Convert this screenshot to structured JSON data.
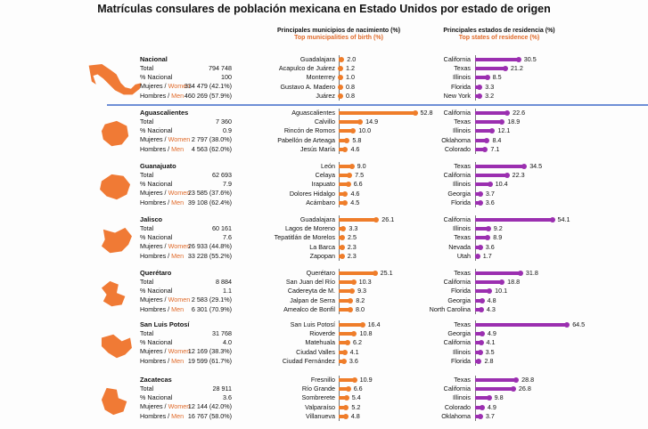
{
  "title": "Matrículas consulares de población mexicana en Estado Unidos por estado de origen",
  "headers": {
    "municipalities_es": "Principales municipios de nacimiento (%)",
    "municipalities_en": "Top municipalities of birth (%)",
    "states_es": "Principales estados de residencia (%)",
    "states_en": "Top states of residence (%)"
  },
  "labels": {
    "total": "Total",
    "pct": "% Nacional",
    "women_es": "Mujeres / ",
    "women_en": "Women",
    "men_es": "Hombres / ",
    "men_en": "Men"
  },
  "colors": {
    "municipality_bar": "#ef7d2a",
    "state_bar": "#9b2fb0",
    "map": "#f07a35",
    "separator": "#6e8fd6"
  },
  "chart_data": {
    "type": "bar",
    "orientation": "horizontal",
    "panels": [
      "Principales municipios de nacimiento (%)",
      "Principales estados de residencia (%)"
    ],
    "blocks": [
      {
        "name": "Nacional",
        "total": "794 748",
        "pct": "100",
        "women": "334 479 (42.1%)",
        "men": "460 269 (57.9%)",
        "municipalities": [
          {
            "name": "Guadalajara",
            "value": 2.0,
            "label": "2.0"
          },
          {
            "name": "Acapulco de Juárez",
            "value": 1.2,
            "label": "1.2"
          },
          {
            "name": "Monterrey",
            "value": 1.0,
            "label": "1.0"
          },
          {
            "name": "Gustavo A. Madero",
            "value": 0.8,
            "label": "0.8"
          },
          {
            "name": "Juárez",
            "value": 0.8,
            "label": "0.8"
          }
        ],
        "states": [
          {
            "name": "California",
            "value": 30.5,
            "label": "30.5"
          },
          {
            "name": "Texas",
            "value": 21.2,
            "label": "21.2"
          },
          {
            "name": "Illinois",
            "value": 8.5,
            "label": "8.5"
          },
          {
            "name": "Florida",
            "value": 3.3,
            "label": "3.3"
          },
          {
            "name": "New York",
            "value": 3.2,
            "label": "3.2"
          }
        ]
      },
      {
        "name": "Aguascalientes",
        "total": "7 360",
        "pct": "0.9",
        "women": "2 797 (38.0%)",
        "men": "4 563 (62.0%)",
        "municipalities": [
          {
            "name": "Aguascalientes",
            "value": 52.8,
            "label": "52.8"
          },
          {
            "name": "Calvillo",
            "value": 14.9,
            "label": "14.9"
          },
          {
            "name": "Rincón de Romos",
            "value": 10.0,
            "label": "10.0"
          },
          {
            "name": "Pabellón de Arteaga",
            "value": 5.8,
            "label": "5.8"
          },
          {
            "name": "Jesús María",
            "value": 4.6,
            "label": "4.6"
          }
        ],
        "states": [
          {
            "name": "California",
            "value": 22.6,
            "label": "22.6"
          },
          {
            "name": "Texas",
            "value": 18.9,
            "label": "18.9"
          },
          {
            "name": "Illinois",
            "value": 12.1,
            "label": "12.1"
          },
          {
            "name": "Oklahoma",
            "value": 8.4,
            "label": "8.4"
          },
          {
            "name": "Colorado",
            "value": 7.1,
            "label": "7.1"
          }
        ]
      },
      {
        "name": "Guanajuato",
        "total": "62 693",
        "pct": "7.9",
        "women": "23 585 (37.6%)",
        "men": "39 108 (62.4%)",
        "municipalities": [
          {
            "name": "León",
            "value": 9.0,
            "label": "9.0"
          },
          {
            "name": "Celaya",
            "value": 7.5,
            "label": "7.5"
          },
          {
            "name": "Irapuato",
            "value": 6.6,
            "label": "6.6"
          },
          {
            "name": "Dolores Hidalgo",
            "value": 4.6,
            "label": "4.6"
          },
          {
            "name": "Acámbaro",
            "value": 4.5,
            "label": "4.5"
          }
        ],
        "states": [
          {
            "name": "Texas",
            "value": 34.5,
            "label": "34.5"
          },
          {
            "name": "California",
            "value": 22.3,
            "label": "22.3"
          },
          {
            "name": "Illinois",
            "value": 10.4,
            "label": "10.4"
          },
          {
            "name": "Georgia",
            "value": 3.7,
            "label": "3.7"
          },
          {
            "name": "Florida",
            "value": 3.6,
            "label": "3.6"
          }
        ]
      },
      {
        "name": "Jalisco",
        "total": "60 161",
        "pct": "7.6",
        "women": "26 933 (44.8%)",
        "men": "33 228 (55.2%)",
        "municipalities": [
          {
            "name": "Guadalajara",
            "value": 26.1,
            "label": "26.1"
          },
          {
            "name": "Lagos de Moreno",
            "value": 3.3,
            "label": "3.3"
          },
          {
            "name": "Tepatitlán de Morelos",
            "value": 2.5,
            "label": "2.5"
          },
          {
            "name": "La Barca",
            "value": 2.3,
            "label": "2.3"
          },
          {
            "name": "Zapopan",
            "value": 2.3,
            "label": "2.3"
          }
        ],
        "states": [
          {
            "name": "California",
            "value": 54.1,
            "label": "54.1"
          },
          {
            "name": "Illinois",
            "value": 9.2,
            "label": "9.2"
          },
          {
            "name": "Texas",
            "value": 8.9,
            "label": "8.9"
          },
          {
            "name": "Nevada",
            "value": 3.6,
            "label": "3.6"
          },
          {
            "name": "Utah",
            "value": 1.7,
            "label": "1.7"
          }
        ]
      },
      {
        "name": "Querétaro",
        "total": "8 884",
        "pct": "1.1",
        "women": "2 583 (29.1%)",
        "men": "6 301 (70.9%)",
        "municipalities": [
          {
            "name": "Querétaro",
            "value": 25.1,
            "label": "25.1"
          },
          {
            "name": "San Juan del Río",
            "value": 10.3,
            "label": "10.3"
          },
          {
            "name": "Cadereyta de M.",
            "value": 9.3,
            "label": "9.3"
          },
          {
            "name": "Jalpan de Serra",
            "value": 8.2,
            "label": "8.2"
          },
          {
            "name": "Amealco de Bonfil",
            "value": 8.0,
            "label": "8.0"
          }
        ],
        "states": [
          {
            "name": "Texas",
            "value": 31.8,
            "label": "31.8"
          },
          {
            "name": "California",
            "value": 18.8,
            "label": "18.8"
          },
          {
            "name": "Florida",
            "value": 10.1,
            "label": "10.1"
          },
          {
            "name": "Georgia",
            "value": 4.8,
            "label": "4.8"
          },
          {
            "name": "North Carolina",
            "value": 4.3,
            "label": "4.3"
          }
        ]
      },
      {
        "name": "San Luis Potosí",
        "total": "31 768",
        "pct": "4.0",
        "women": "12 169 (38.3%)",
        "men": "19 599 (61.7%)",
        "municipalities": [
          {
            "name": "San Luis Potosí",
            "value": 16.4,
            "label": "16.4"
          },
          {
            "name": "Rioverde",
            "value": 10.8,
            "label": "10.8"
          },
          {
            "name": "Matehuala",
            "value": 6.2,
            "label": "6.2"
          },
          {
            "name": "Ciudad Valles",
            "value": 4.1,
            "label": "4.1"
          },
          {
            "name": "Ciudad Fernández",
            "value": 3.6,
            "label": "3.6"
          }
        ],
        "states": [
          {
            "name": "Texas",
            "value": 64.5,
            "label": "64.5"
          },
          {
            "name": "Georgia",
            "value": 4.9,
            "label": "4.9"
          },
          {
            "name": "California",
            "value": 4.1,
            "label": "4.1"
          },
          {
            "name": "Illinois",
            "value": 3.5,
            "label": "3.5"
          },
          {
            "name": "Florida",
            "value": 2.8,
            "label": "2.8"
          }
        ]
      },
      {
        "name": "Zacatecas",
        "total": "28 911",
        "pct": "3.6",
        "women": "12 144 (42.0%)",
        "men": "16 767 (58.0%)",
        "municipalities": [
          {
            "name": "Fresnillo",
            "value": 10.9,
            "label": "10.9"
          },
          {
            "name": "Río Grande",
            "value": 6.6,
            "label": "6.6"
          },
          {
            "name": "Sombrerete",
            "value": 5.4,
            "label": "5.4"
          },
          {
            "name": "Valparaíso",
            "value": 5.2,
            "label": "5.2"
          },
          {
            "name": "Villanueva",
            "value": 4.8,
            "label": "4.8"
          }
        ],
        "states": [
          {
            "name": "Texas",
            "value": 28.8,
            "label": "28.8"
          },
          {
            "name": "California",
            "value": 26.8,
            "label": "26.8"
          },
          {
            "name": "Illinois",
            "value": 9.8,
            "label": "9.8"
          },
          {
            "name": "Colorado",
            "value": 4.9,
            "label": "4.9"
          },
          {
            "name": "Oklahoma",
            "value": 3.7,
            "label": "3.7"
          }
        ]
      }
    ]
  }
}
